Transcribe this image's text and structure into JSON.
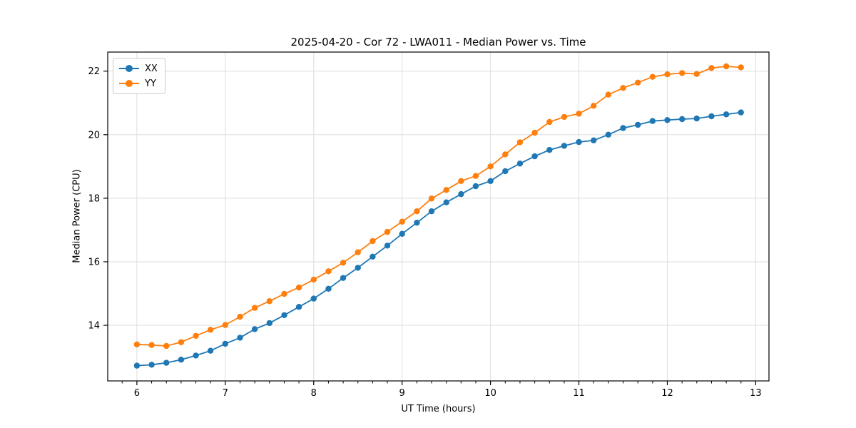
{
  "chart_data": {
    "type": "line",
    "title": "2025-04-20 - Cor 72 - LWA011 - Median Power vs. Time",
    "xlabel": "UT Time (hours)",
    "ylabel": "Median Power (CPU)",
    "xlim": [
      5.67,
      13.15
    ],
    "ylim": [
      12.25,
      22.6
    ],
    "xticks": [
      6,
      7,
      8,
      9,
      10,
      11,
      12,
      13
    ],
    "yticks": [
      14,
      16,
      18,
      20,
      22
    ],
    "x_minor_step": 0.16667,
    "grid": true,
    "legend_position": "upper-left",
    "marker": "circle",
    "background_color": "#ffffff",
    "grid_color": "#dedede",
    "spine_color": "#000000",
    "text_color": "#000000",
    "x": [
      6.0,
      6.167,
      6.333,
      6.5,
      6.667,
      6.833,
      7.0,
      7.167,
      7.333,
      7.5,
      7.667,
      7.833,
      8.0,
      8.167,
      8.333,
      8.5,
      8.667,
      8.833,
      9.0,
      9.167,
      9.333,
      9.5,
      9.667,
      9.833,
      10.0,
      10.167,
      10.333,
      10.5,
      10.667,
      10.833,
      11.0,
      11.167,
      11.333,
      11.5,
      11.667,
      11.833,
      12.0,
      12.167,
      12.333,
      12.5,
      12.667,
      12.833
    ],
    "series": [
      {
        "name": "XX",
        "color": "#1f77b4",
        "values": [
          12.73,
          12.76,
          12.82,
          12.92,
          13.05,
          13.2,
          13.42,
          13.61,
          13.88,
          14.07,
          14.32,
          14.58,
          14.84,
          15.15,
          15.49,
          15.81,
          16.16,
          16.51,
          16.88,
          17.23,
          17.59,
          17.87,
          18.13,
          18.38,
          18.54,
          18.85,
          19.09,
          19.32,
          19.52,
          19.65,
          19.77,
          19.82,
          20.0,
          20.21,
          20.31,
          20.43,
          20.46,
          20.49,
          20.51,
          20.58,
          20.64,
          20.7
        ]
      },
      {
        "name": "YY",
        "color": "#ff7f0e",
        "values": [
          13.4,
          13.38,
          13.35,
          13.47,
          13.67,
          13.86,
          14.01,
          14.27,
          14.55,
          14.76,
          14.99,
          15.19,
          15.44,
          15.7,
          15.97,
          16.3,
          16.65,
          16.94,
          17.26,
          17.59,
          17.99,
          18.26,
          18.54,
          18.7,
          19.0,
          19.38,
          19.76,
          20.06,
          20.4,
          20.56,
          20.66,
          20.91,
          21.26,
          21.47,
          21.64,
          21.82,
          21.9,
          21.94,
          21.91,
          22.1,
          22.15,
          22.12
        ]
      }
    ]
  }
}
